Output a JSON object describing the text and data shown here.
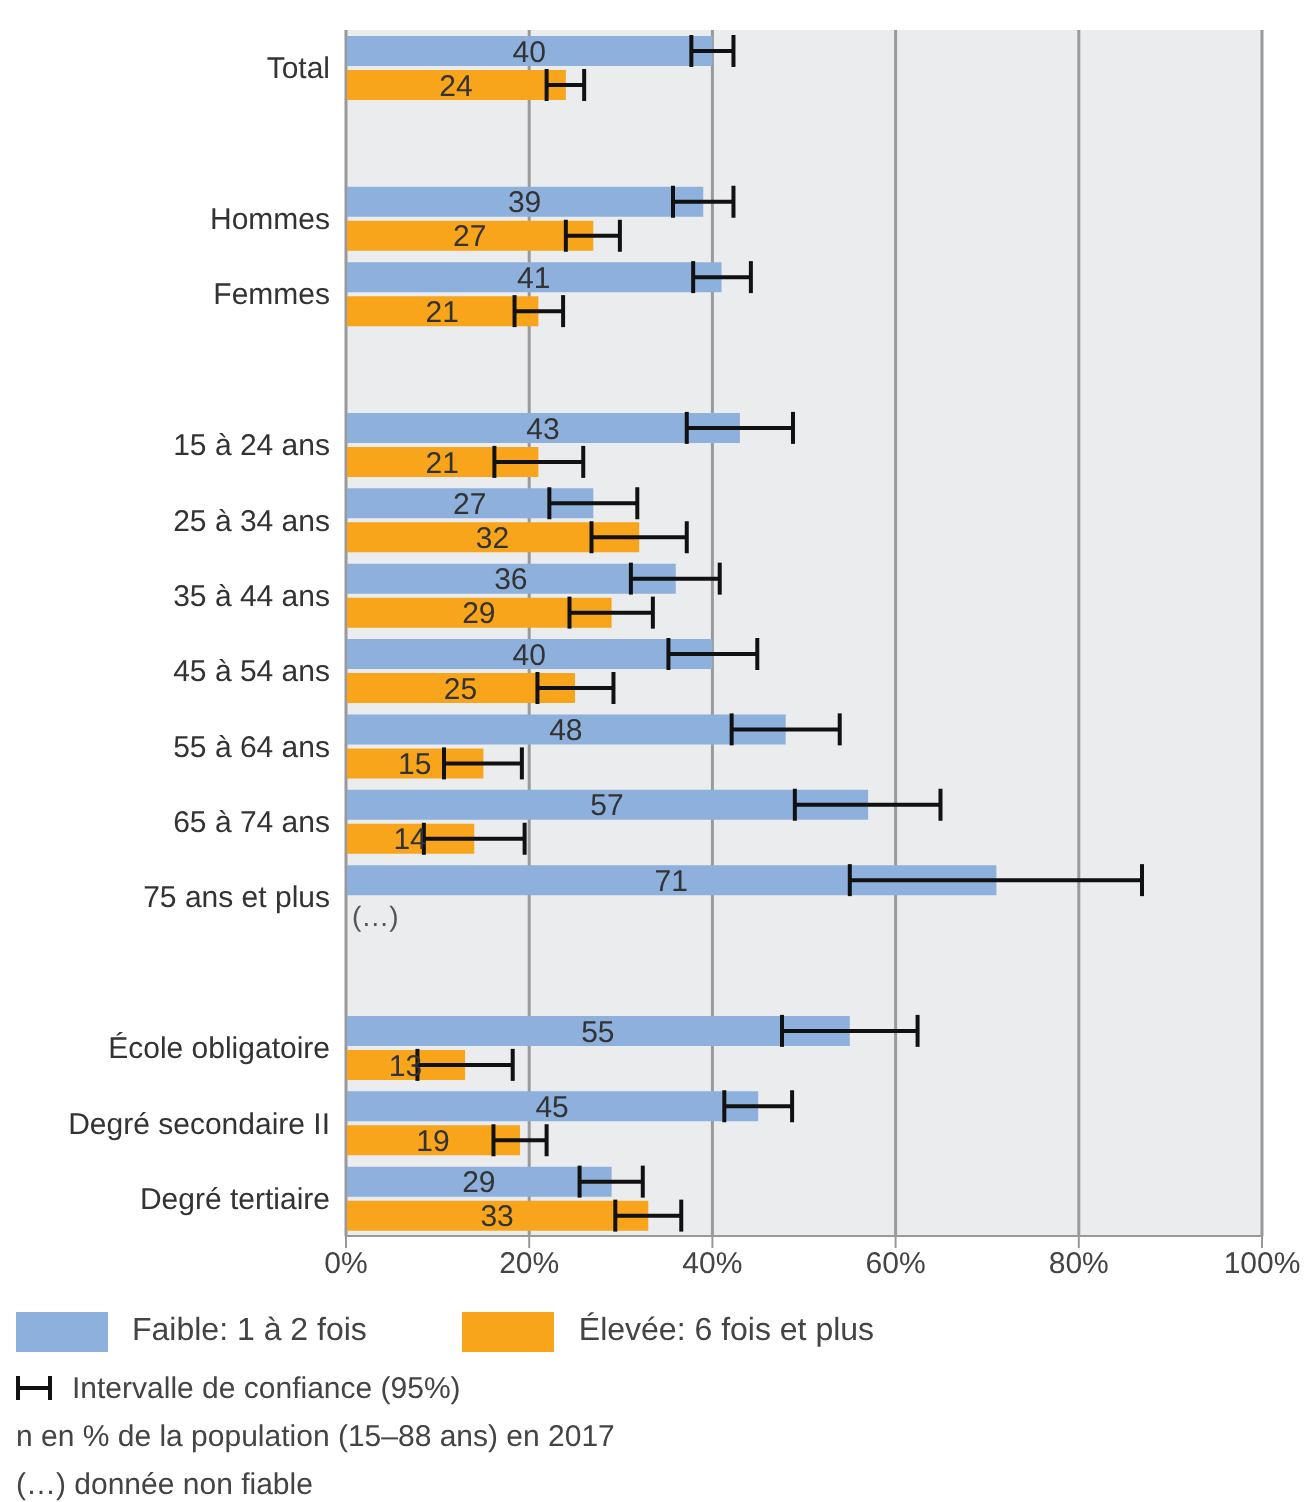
{
  "chart_data": {
    "type": "bar",
    "orientation": "horizontal",
    "categories": [
      "Total",
      null,
      "Hommes",
      "Femmes",
      null,
      "15 à 24 ans",
      "25 à 34 ans",
      "35 à 44 ans",
      "45 à 54 ans",
      "55 à 64 ans",
      "65 à 74 ans",
      "75 ans et plus",
      null,
      "École obligatoire",
      "Degré secondaire II",
      "Degré tertiaire"
    ],
    "series": [
      {
        "name": "Faible: 1 à 2 fois",
        "color": "#8eb0dc",
        "values": [
          40,
          null,
          39,
          41,
          null,
          43,
          27,
          36,
          40,
          48,
          57,
          71,
          null,
          55,
          45,
          29
        ],
        "errors": [
          [
            37.7,
            42.3
          ],
          null,
          [
            35.7,
            42.3
          ],
          [
            37.9,
            44.2
          ],
          null,
          [
            37.2,
            48.8
          ],
          [
            22.2,
            31.8
          ],
          [
            31.1,
            40.8
          ],
          [
            35.2,
            44.9
          ],
          [
            42.1,
            53.9
          ],
          [
            49.0,
            64.9
          ],
          [
            55.0,
            86.9
          ],
          null,
          [
            47.6,
            62.4
          ],
          [
            41.3,
            48.7
          ],
          [
            25.5,
            32.4
          ]
        ]
      },
      {
        "name": "Élevée: 6 fois et plus",
        "color": "#f8a51b",
        "values": [
          24,
          null,
          27,
          21,
          null,
          21,
          32,
          29,
          25,
          15,
          14,
          null,
          null,
          13,
          19,
          33
        ],
        "errors": [
          [
            21.9,
            26.0
          ],
          null,
          [
            24.0,
            29.9
          ],
          [
            18.4,
            23.7
          ],
          null,
          [
            16.2,
            25.9
          ],
          [
            26.8,
            37.2
          ],
          [
            24.4,
            33.5
          ],
          [
            20.9,
            29.2
          ],
          [
            10.7,
            19.2
          ],
          [
            8.5,
            19.5
          ],
          null,
          null,
          [
            7.8,
            18.2
          ],
          [
            16.1,
            21.9
          ],
          [
            29.4,
            36.6
          ]
        ]
      }
    ],
    "xlim": [
      0,
      100
    ],
    "xticks": [
      {
        "value": 0,
        "label": "0%"
      },
      {
        "value": 20,
        "label": "20%"
      },
      {
        "value": 40,
        "label": "40%"
      },
      {
        "value": 60,
        "label": "60%"
      },
      {
        "value": 80,
        "label": "80%"
      },
      {
        "value": 100,
        "label": "100%"
      }
    ],
    "grid": "x",
    "legend": "bottom",
    "data_labels": true,
    "annotations": [
      "Intervalle de confiance (95%)",
      "n en % de la population (15–88 ans) en 2017",
      "(…) donnée non fiable",
      {
        "text": "(…)",
        "x": 0,
        "y": "75 ans et plus"
      }
    ]
  }
}
